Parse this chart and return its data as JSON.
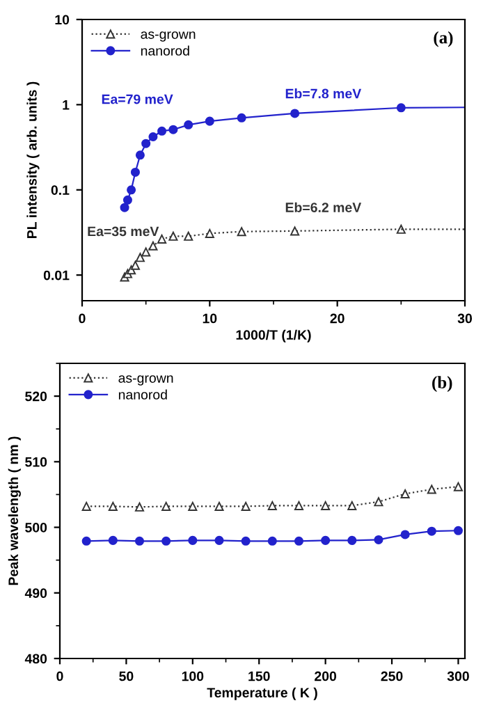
{
  "chart_data": [
    {
      "type": "line",
      "title": "(a)",
      "xlabel": "1000/T (1/K)",
      "ylabel": "PL intensity ( arb. units )",
      "log": "y",
      "xlim": [
        0,
        30
      ],
      "xticks": [
        0,
        10,
        20,
        30
      ],
      "ylim": [
        0.005,
        10
      ],
      "yticks": [
        0.01,
        0.1,
        1,
        10
      ],
      "legend": "top left",
      "grid": false,
      "series": [
        {
          "name": "as-grown",
          "color": "#333333",
          "marker": "triangle",
          "line_style": "dotted",
          "x": [
            3.33,
            3.57,
            3.85,
            4.17,
            4.55,
            5,
            5.56,
            6.25,
            7.14,
            8.33,
            10,
            12.5,
            16.67,
            25
          ],
          "values": [
            0.0095,
            0.0104,
            0.0115,
            0.013,
            0.0161,
            0.0187,
            0.022,
            0.0265,
            0.0286,
            0.0286,
            0.0308,
            0.0324,
            0.0329,
            0.0345
          ]
        },
        {
          "name": "nanorod",
          "color": "#2222cc",
          "marker": "circle",
          "line_style": "solid",
          "x": [
            3.33,
            3.57,
            3.85,
            4.17,
            4.55,
            5,
            5.56,
            6.25,
            7.14,
            8.33,
            10,
            12.5,
            16.67,
            25
          ],
          "values": [
            0.062,
            0.076,
            0.1,
            0.161,
            0.256,
            0.35,
            0.42,
            0.49,
            0.51,
            0.58,
            0.64,
            0.7,
            0.79,
            0.92
          ]
        },
        {
          "color": "#333333",
          "marker": "none",
          "line_style": "dotted",
          "x": [
            25,
            30
          ],
          "values": [
            0.0345,
            0.0345
          ]
        },
        {
          "color": "#2222cc",
          "marker": "none",
          "line_style": "solid",
          "x": [
            25,
            30
          ],
          "values": [
            0.92,
            0.93
          ]
        }
      ],
      "annotations": [
        "Ea=79 meV",
        "Eb=7.8 meV",
        "Eb=6.2 meV",
        "Ea=35 meV"
      ]
    },
    {
      "type": "line",
      "title": "(b)",
      "xlabel": "Temperature ( K )",
      "ylabel": "Peak wavelength ( nm )",
      "xlim": [
        0,
        305
      ],
      "xticks": [
        0,
        50,
        100,
        150,
        200,
        250,
        300
      ],
      "ylim": [
        480,
        525
      ],
      "yticks": [
        480,
        490,
        500,
        510,
        520
      ],
      "legend": "top left",
      "grid": false,
      "x": [
        20,
        40,
        60,
        80,
        100,
        120,
        140,
        160,
        180,
        200,
        220,
        240,
        260,
        280,
        300
      ],
      "series": [
        {
          "name": "as-grown",
          "color": "#333333",
          "marker": "triangle",
          "line_style": "dotted",
          "values": [
            503.2,
            503.2,
            503.1,
            503.2,
            503.2,
            503.2,
            503.2,
            503.3,
            503.3,
            503.3,
            503.3,
            503.9,
            505.1,
            505.8,
            506.2
          ]
        },
        {
          "name": "nanorod",
          "color": "#2222cc",
          "marker": "circle",
          "line_style": "solid",
          "values": [
            497.9,
            498.0,
            497.9,
            497.9,
            498.0,
            498.0,
            497.9,
            497.9,
            497.9,
            498.0,
            498.0,
            498.1,
            498.9,
            499.4,
            499.5
          ]
        }
      ]
    }
  ]
}
